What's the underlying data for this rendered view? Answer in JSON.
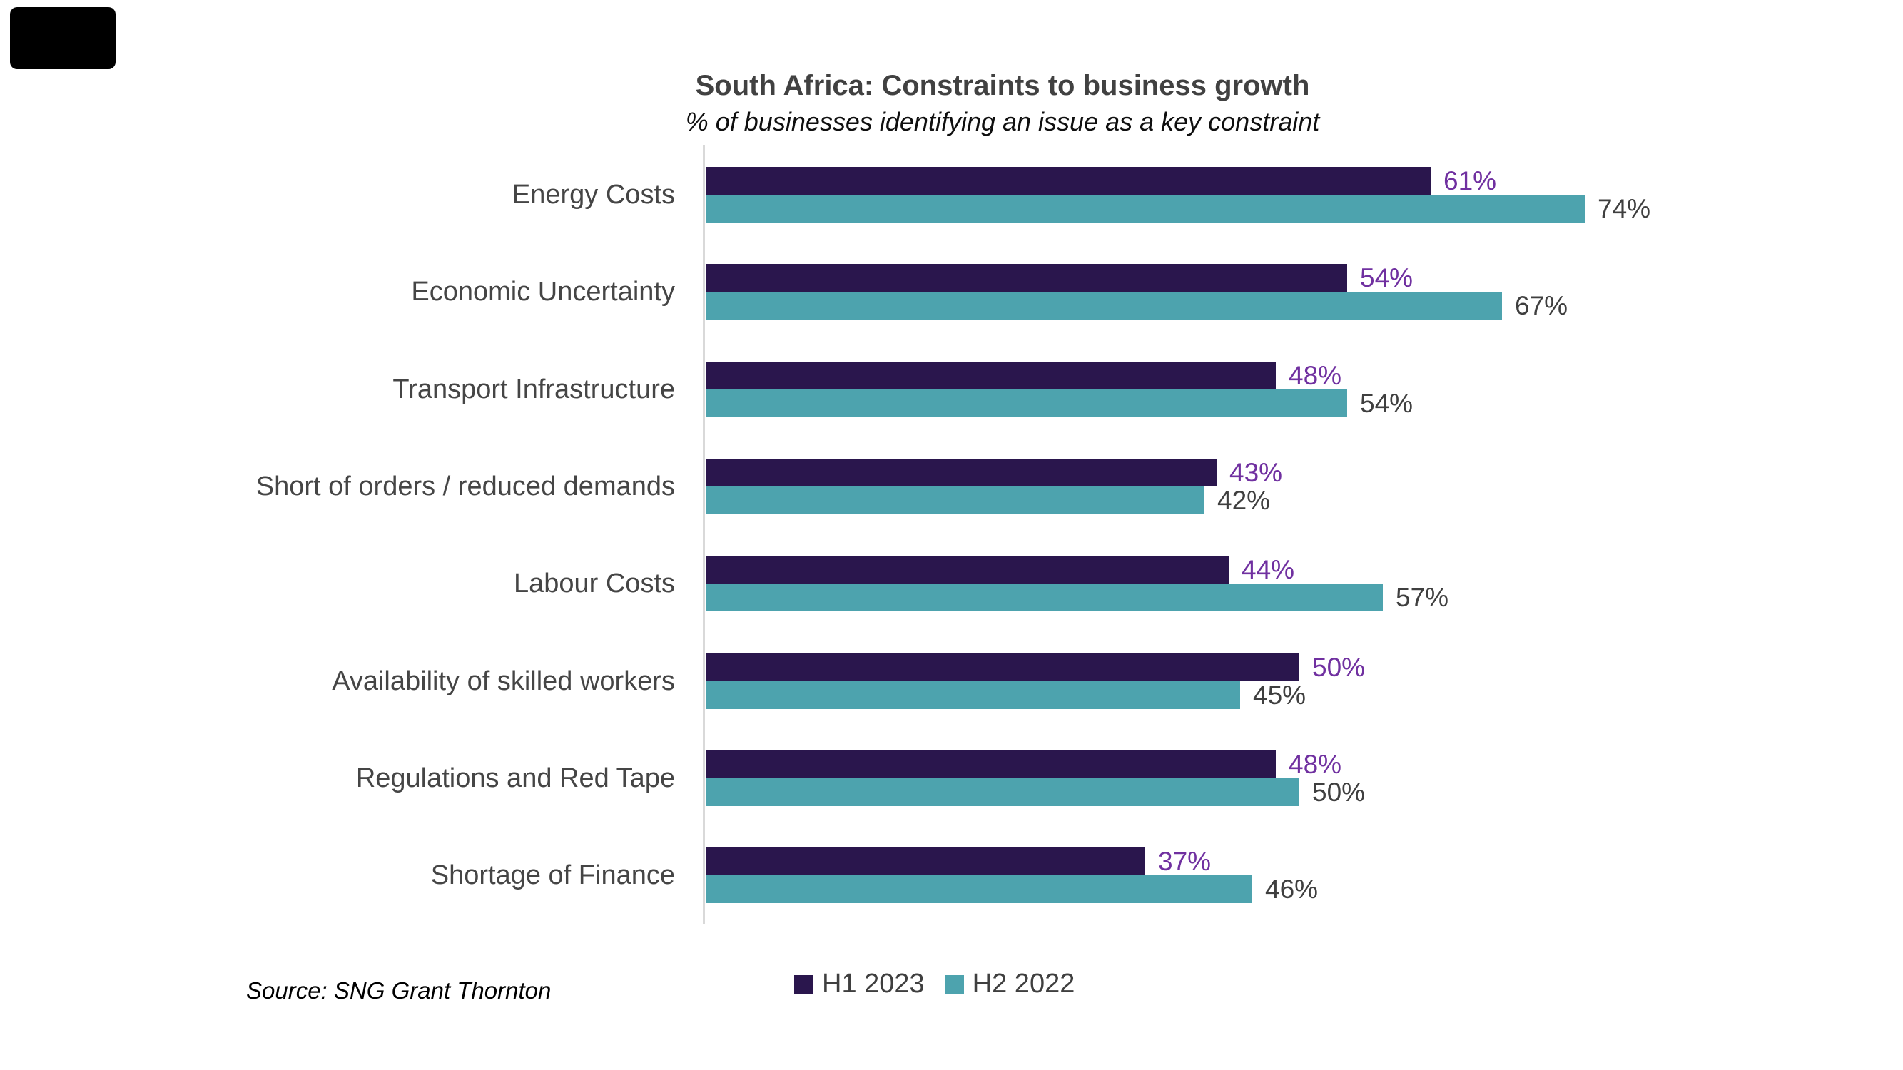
{
  "chart_data": {
    "type": "bar",
    "orientation": "horizontal",
    "title": "South Africa: Constraints to business growth",
    "subtitle": "% of businesses identifying an issue as a key constraint",
    "categories": [
      "Energy Costs",
      "Economic Uncertainty",
      "Transport Infrastructure",
      "Short of orders / reduced demands",
      "Labour Costs",
      "Availability of skilled workers",
      "Regulations and Red Tape",
      "Shortage of Finance"
    ],
    "series": [
      {
        "name": "H1 2023",
        "color": "#2a164d",
        "label_color": "#7030a0",
        "values": [
          61,
          54,
          48,
          43,
          44,
          50,
          48,
          37
        ]
      },
      {
        "name": "H2 2022",
        "color": "#4da3ae",
        "label_color": "#3f3f3f",
        "values": [
          74,
          67,
          54,
          42,
          57,
          45,
          50,
          46
        ]
      }
    ],
    "value_suffix": "%",
    "xlim": [
      0,
      80
    ],
    "grid": false,
    "axis_line_color": "#d9d9d9",
    "legend_position": "bottom",
    "source": "Source: SNG Grant Thornton"
  }
}
